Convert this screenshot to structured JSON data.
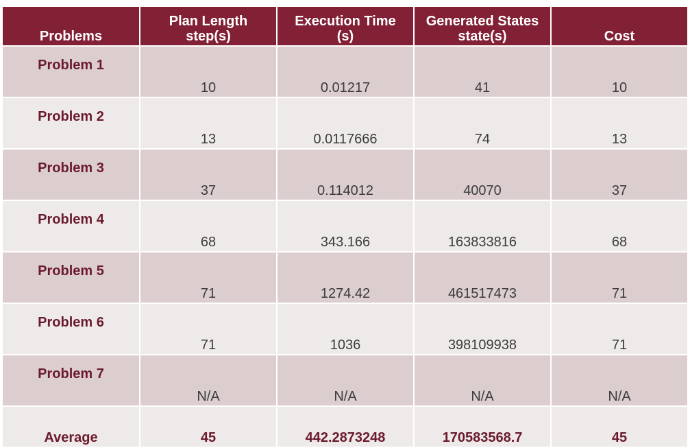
{
  "table": {
    "headers": [
      [
        "Problems"
      ],
      [
        "Plan Length",
        "step(s)"
      ],
      [
        "Execution Time",
        "(s)"
      ],
      [
        "Generated States",
        "state(s)"
      ],
      [
        "Cost"
      ]
    ],
    "rows": [
      {
        "label": "Problem 1",
        "cells": [
          "10",
          "0.01217",
          "41",
          "10"
        ]
      },
      {
        "label": "Problem 2",
        "cells": [
          "13",
          "0.0117666",
          "74",
          "13"
        ]
      },
      {
        "label": "Problem 3",
        "cells": [
          "37",
          "0.114012",
          "40070",
          "37"
        ]
      },
      {
        "label": "Problem 4",
        "cells": [
          "68",
          "343.166",
          "163833816",
          "68"
        ]
      },
      {
        "label": "Problem 5",
        "cells": [
          "71",
          "1274.42",
          "461517473",
          "71"
        ]
      },
      {
        "label": "Problem 6",
        "cells": [
          "71",
          "1036",
          "398109938",
          "71"
        ]
      },
      {
        "label": "Problem 7",
        "cells": [
          "N/A",
          "N/A",
          "N/A",
          "N/A"
        ]
      }
    ],
    "average": {
      "label": "Average",
      "cells": [
        "45",
        "442.2873248",
        "170583568.7",
        "45"
      ]
    }
  },
  "colors": {
    "header_bg": "#822035",
    "row_odd_bg": "#dccdcf",
    "row_even_bg": "#eeeae9",
    "label_text": "#6b1a2c"
  }
}
